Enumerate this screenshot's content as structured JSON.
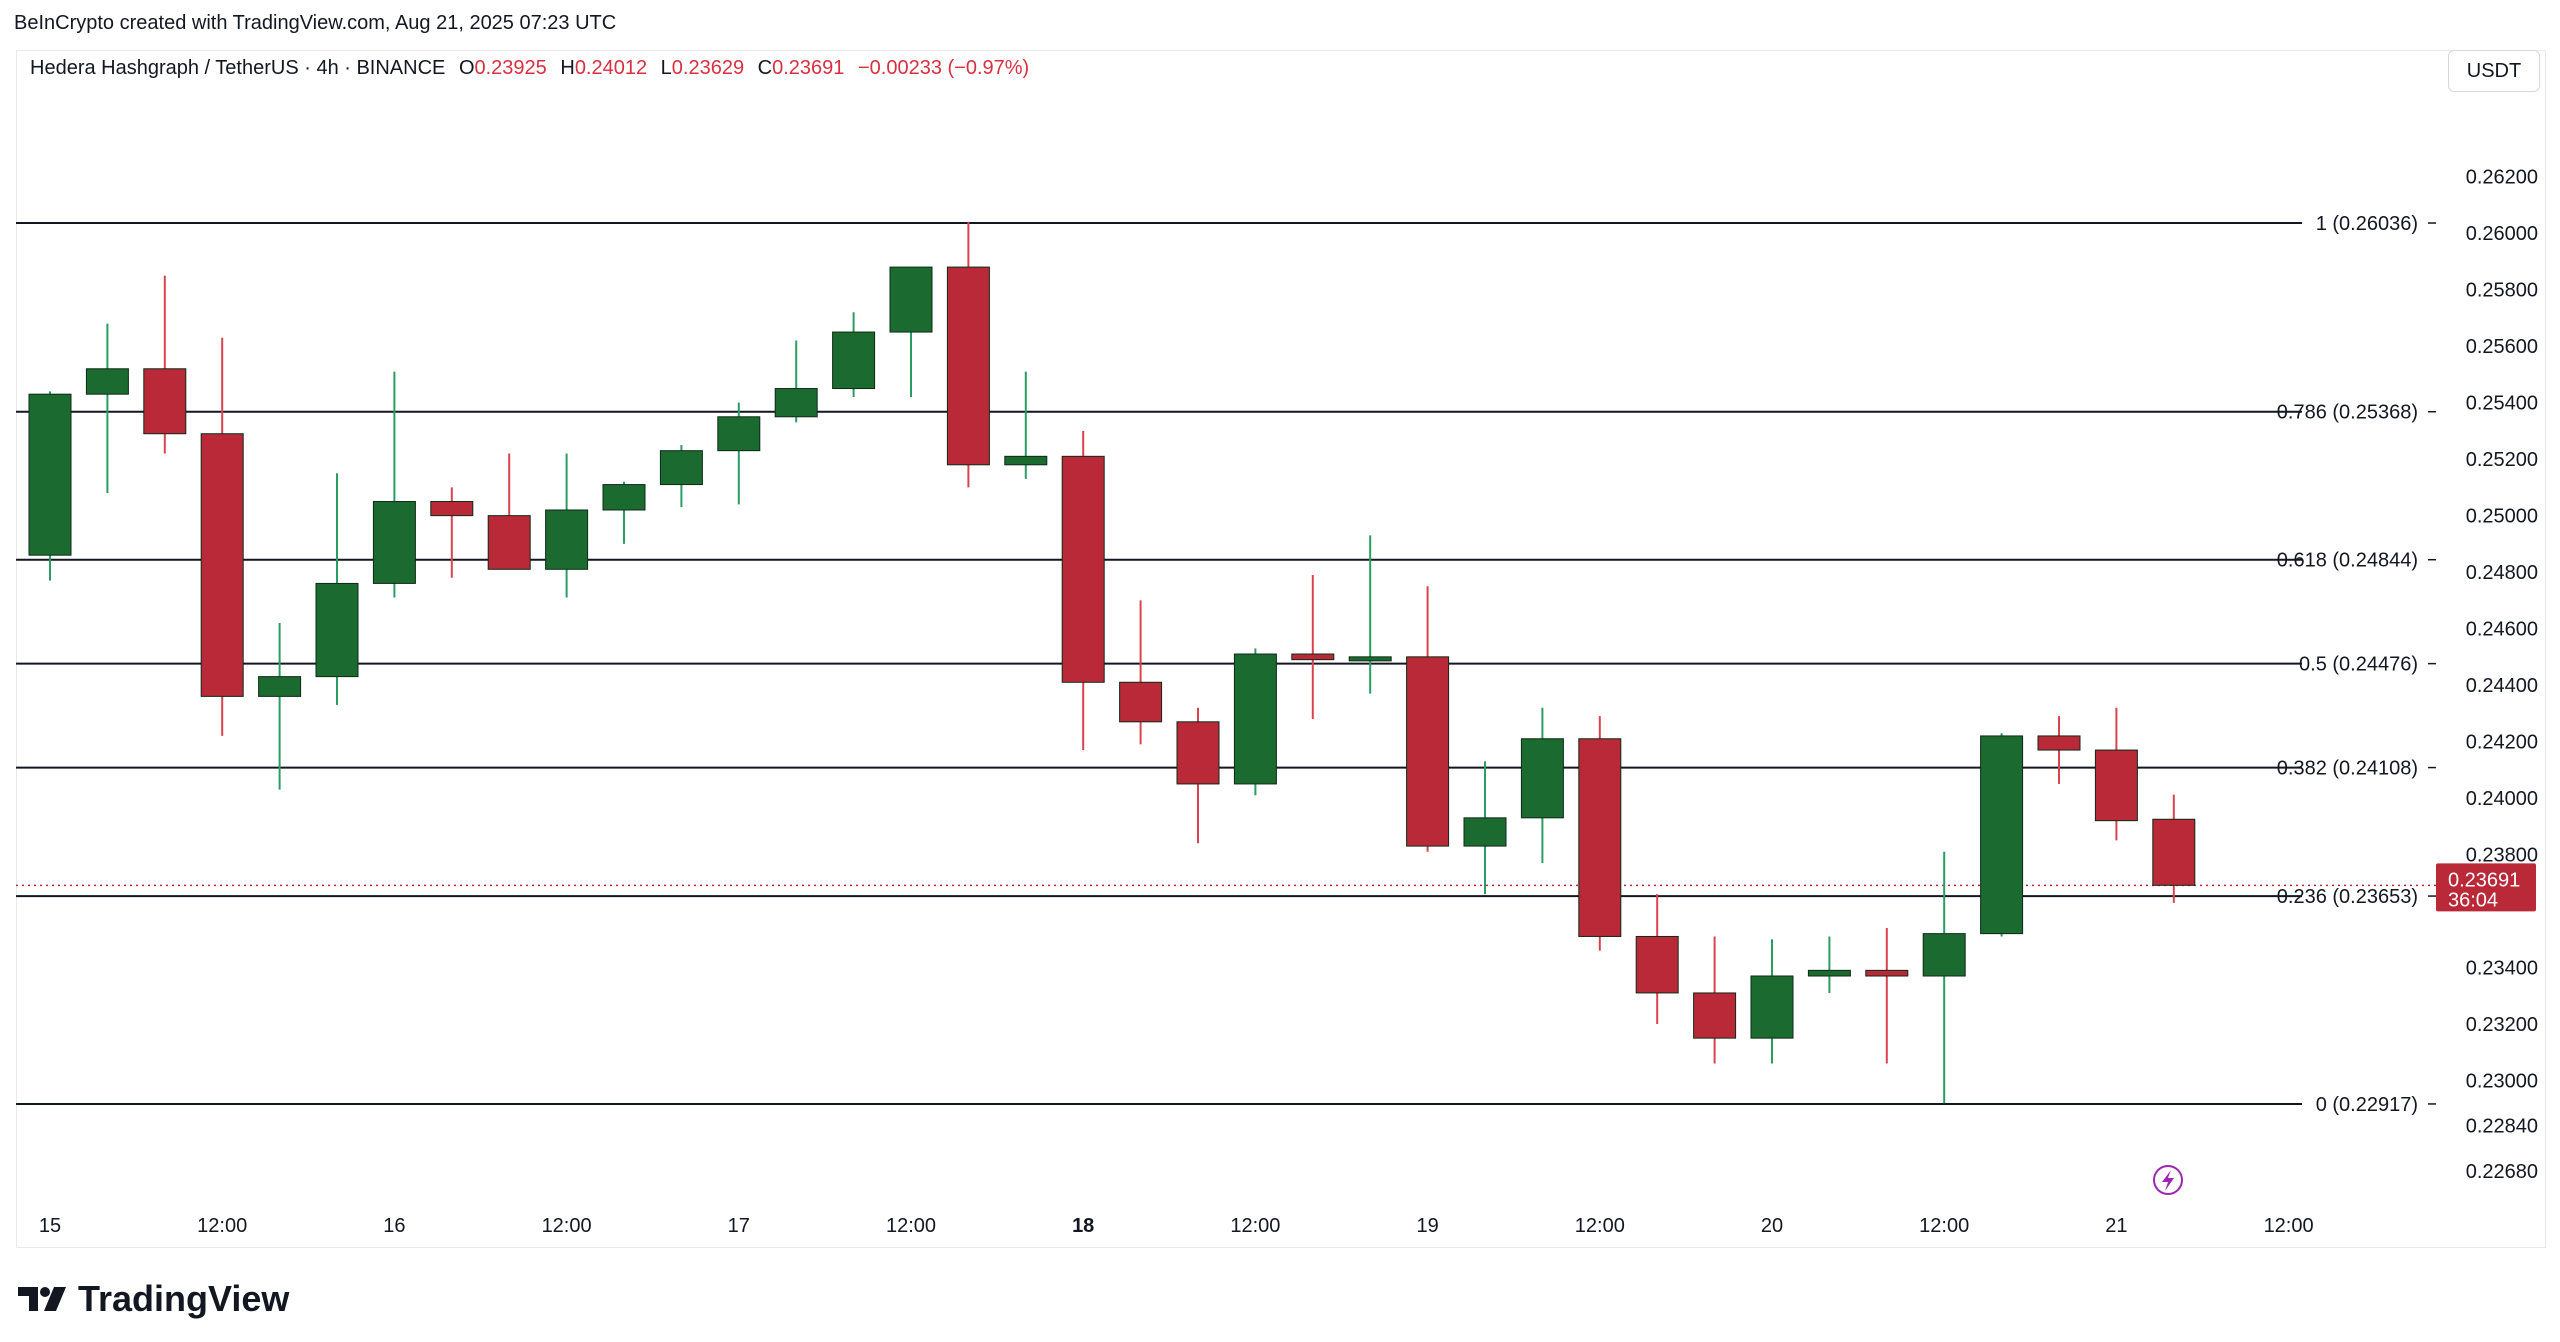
{
  "credit": "BeInCrypto created with TradingView.com, Aug 21, 2025 07:23 UTC",
  "legend": {
    "symbol": "Hedera Hashgraph / TetherUS · 4h · BINANCE",
    "open_label": "O",
    "open": "0.23925",
    "high_label": "H",
    "high": "0.24012",
    "low_label": "L",
    "low": "0.23629",
    "close_label": "C",
    "close": "0.23691",
    "change": "−0.00233 (−0.97%)"
  },
  "unit": "USDT",
  "brand": "TradingView",
  "colors": {
    "up": "#1b6a2f",
    "down": "#b92938",
    "text_down": "#d93040",
    "fib": "#131722",
    "lightning": "#9c27b0"
  },
  "chart_data": {
    "type": "candlestick",
    "ylim": [
      0.2263,
      0.2633
    ],
    "y_ticks": [
      "0.26200",
      "0.26000",
      "0.25800",
      "0.25600",
      "0.25400",
      "0.25200",
      "0.25000",
      "0.24800",
      "0.24600",
      "0.24400",
      "0.24200",
      "0.24000",
      "0.23800",
      "0.23400",
      "0.23200",
      "0.23000",
      "0.22840",
      "0.22680"
    ],
    "x_ticks": [
      {
        "label": "15",
        "bar": 0,
        "bold": false
      },
      {
        "label": "12:00",
        "bar": 3,
        "bold": false
      },
      {
        "label": "16",
        "bar": 6,
        "bold": false
      },
      {
        "label": "12:00",
        "bar": 9,
        "bold": false
      },
      {
        "label": "17",
        "bar": 12,
        "bold": false
      },
      {
        "label": "12:00",
        "bar": 15,
        "bold": false
      },
      {
        "label": "18",
        "bar": 18,
        "bold": true
      },
      {
        "label": "12:00",
        "bar": 21,
        "bold": false
      },
      {
        "label": "19",
        "bar": 24,
        "bold": false
      },
      {
        "label": "12:00",
        "bar": 27,
        "bold": false
      },
      {
        "label": "20",
        "bar": 30,
        "bold": false
      },
      {
        "label": "12:00",
        "bar": 33,
        "bold": false
      },
      {
        "label": "21",
        "bar": 36,
        "bold": false
      },
      {
        "label": "12:00",
        "bar": 39,
        "bold": false
      }
    ],
    "fib_levels": [
      {
        "label": "1 (0.26036)",
        "value": 0.26036
      },
      {
        "label": "0.786 (0.25368)",
        "value": 0.25368
      },
      {
        "label": "0.618 (0.24844)",
        "value": 0.24844
      },
      {
        "label": "0.5 (0.24476)",
        "value": 0.24476
      },
      {
        "label": "0.382 (0.24108)",
        "value": 0.24108
      },
      {
        "label": "0.236 (0.23653)",
        "value": 0.23653
      },
      {
        "label": "0 (0.22917)",
        "value": 0.22917
      }
    ],
    "last_price": {
      "price": "0.23691",
      "countdown": "36:04",
      "value": 0.23691
    },
    "candles": [
      {
        "o": 0.2486,
        "h": 0.2544,
        "l": 0.2477,
        "c": 0.2543
      },
      {
        "o": 0.2543,
        "h": 0.2568,
        "l": 0.2508,
        "c": 0.2552
      },
      {
        "o": 0.2552,
        "h": 0.2585,
        "l": 0.2522,
        "c": 0.2529
      },
      {
        "o": 0.2529,
        "h": 0.2563,
        "l": 0.2422,
        "c": 0.2436
      },
      {
        "o": 0.2436,
        "h": 0.2462,
        "l": 0.2403,
        "c": 0.2443
      },
      {
        "o": 0.2443,
        "h": 0.2515,
        "l": 0.2433,
        "c": 0.2476
      },
      {
        "o": 0.2476,
        "h": 0.2551,
        "l": 0.2471,
        "c": 0.2505
      },
      {
        "o": 0.2505,
        "h": 0.251,
        "l": 0.2478,
        "c": 0.25
      },
      {
        "o": 0.25,
        "h": 0.2522,
        "l": 0.2481,
        "c": 0.2481
      },
      {
        "o": 0.2481,
        "h": 0.2522,
        "l": 0.2471,
        "c": 0.2502
      },
      {
        "o": 0.2502,
        "h": 0.2512,
        "l": 0.249,
        "c": 0.2511
      },
      {
        "o": 0.2511,
        "h": 0.2525,
        "l": 0.2503,
        "c": 0.2523
      },
      {
        "o": 0.2523,
        "h": 0.254,
        "l": 0.2504,
        "c": 0.2535
      },
      {
        "o": 0.2535,
        "h": 0.2562,
        "l": 0.2533,
        "c": 0.2545
      },
      {
        "o": 0.2545,
        "h": 0.2572,
        "l": 0.2542,
        "c": 0.2565
      },
      {
        "o": 0.2565,
        "h": 0.2588,
        "l": 0.2542,
        "c": 0.2588
      },
      {
        "o": 0.2588,
        "h": 0.2604,
        "l": 0.251,
        "c": 0.2518
      },
      {
        "o": 0.2518,
        "h": 0.2551,
        "l": 0.2513,
        "c": 0.2521
      },
      {
        "o": 0.2521,
        "h": 0.253,
        "l": 0.2417,
        "c": 0.2441
      },
      {
        "o": 0.2441,
        "h": 0.247,
        "l": 0.2419,
        "c": 0.2427
      },
      {
        "o": 0.2427,
        "h": 0.2432,
        "l": 0.2384,
        "c": 0.2405
      },
      {
        "o": 0.2405,
        "h": 0.2453,
        "l": 0.2401,
        "c": 0.2451
      },
      {
        "o": 0.2451,
        "h": 0.2479,
        "l": 0.2428,
        "c": 0.2449
      },
      {
        "o": 0.2449,
        "h": 0.2493,
        "l": 0.2437,
        "c": 0.245
      },
      {
        "o": 0.245,
        "h": 0.2475,
        "l": 0.2381,
        "c": 0.2383
      },
      {
        "o": 0.2383,
        "h": 0.2413,
        "l": 0.2366,
        "c": 0.2393
      },
      {
        "o": 0.2393,
        "h": 0.2432,
        "l": 0.2377,
        "c": 0.2421
      },
      {
        "o": 0.2421,
        "h": 0.2429,
        "l": 0.2346,
        "c": 0.2351
      },
      {
        "o": 0.2351,
        "h": 0.2366,
        "l": 0.232,
        "c": 0.2331
      },
      {
        "o": 0.2331,
        "h": 0.2351,
        "l": 0.2306,
        "c": 0.2315
      },
      {
        "o": 0.2315,
        "h": 0.235,
        "l": 0.2306,
        "c": 0.2337
      },
      {
        "o": 0.2337,
        "h": 0.2351,
        "l": 0.2331,
        "c": 0.2339
      },
      {
        "o": 0.2339,
        "h": 0.2354,
        "l": 0.2306,
        "c": 0.2337
      },
      {
        "o": 0.2337,
        "h": 0.2381,
        "l": 0.2292,
        "c": 0.2352
      },
      {
        "o": 0.2352,
        "h": 0.2423,
        "l": 0.2351,
        "c": 0.2422
      },
      {
        "o": 0.2422,
        "h": 0.2429,
        "l": 0.2405,
        "c": 0.2417
      },
      {
        "o": 0.2417,
        "h": 0.2432,
        "l": 0.2385,
        "c": 0.2392
      },
      {
        "o": 0.23925,
        "h": 0.24012,
        "l": 0.23629,
        "c": 0.23691
      }
    ]
  }
}
